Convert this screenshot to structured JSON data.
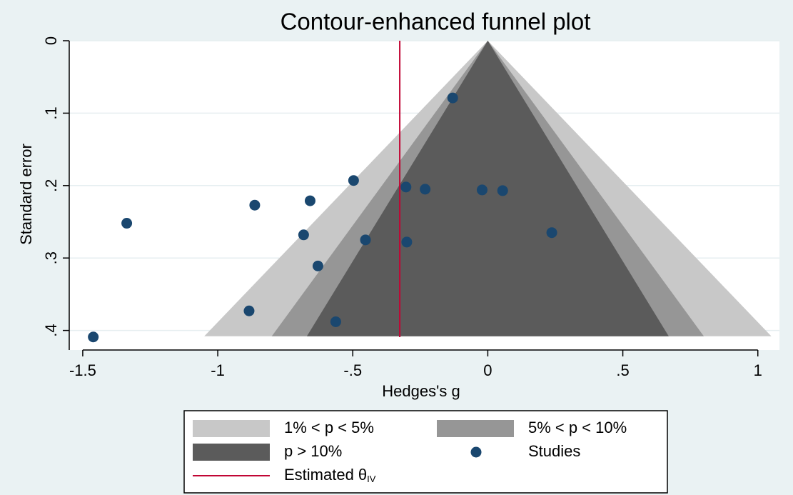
{
  "chart_data": {
    "type": "funnel",
    "title": "Contour-enhanced funnel plot",
    "x_label": "Hedges's g",
    "y_label": "Standard error",
    "xlim": [
      -1.55,
      1.08
    ],
    "ylim": [
      0,
      0.427
    ],
    "y_reversed": true,
    "xticks": [
      -1.5,
      -1,
      {
        "value": -0.5,
        "label": "-.5"
      },
      0,
      {
        "value": 0.5,
        "label": ".5"
      },
      1
    ],
    "yticks": [
      0,
      {
        "value": 0.1,
        "label": ".1"
      },
      {
        "value": 0.2,
        "label": ".2"
      },
      {
        "value": 0.3,
        "label": ".3"
      },
      {
        "value": 0.4,
        "label": ".4"
      }
    ],
    "grid": true,
    "regions": [
      {
        "name": "1% < p < 5%",
        "color": "#c8c8c8",
        "x": [
          0,
          -1.05,
          1.05
        ],
        "y": [
          0,
          0.408,
          0.408
        ]
      },
      {
        "name": "5% < p < 10%",
        "color": "#969696",
        "x": [
          0,
          -0.8,
          0.8
        ],
        "y": [
          0,
          0.408,
          0.408
        ]
      },
      {
        "name": "p > 10%",
        "color": "#5b5b5b",
        "x": [
          0,
          -0.67,
          0.67
        ],
        "y": [
          0,
          0.408,
          0.408
        ]
      }
    ],
    "series": [
      {
        "name": "Studies",
        "color": "#1a476f",
        "x": [
          -0.13,
          -0.497,
          -0.303,
          -0.232,
          -0.021,
          0.055,
          -0.863,
          -0.658,
          -1.337,
          -0.682,
          -0.453,
          -0.3,
          0.237,
          -0.629,
          -0.884,
          -0.563,
          -1.461
        ],
        "values": [
          0.079,
          0.193,
          0.202,
          0.205,
          0.206,
          0.207,
          0.227,
          0.221,
          0.252,
          0.268,
          0.275,
          0.278,
          0.265,
          0.311,
          0.373,
          0.388,
          0.409
        ]
      }
    ],
    "reference_line": {
      "label": "Estimated θ",
      "subscript": "IV",
      "x": -0.326,
      "color": "#c10534"
    }
  }
}
